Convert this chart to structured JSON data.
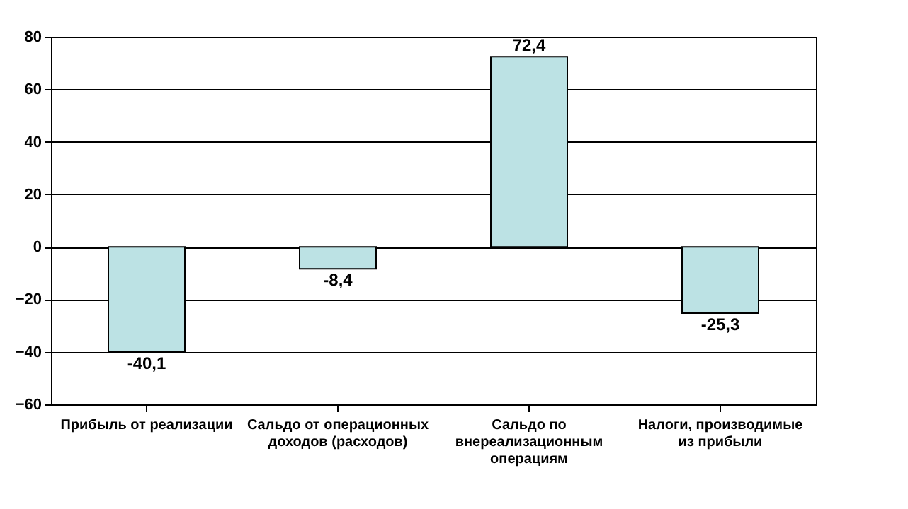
{
  "chart_data": {
    "type": "bar",
    "categories": [
      "Прибыль от реализации",
      "Сальдо от операционных доходов (расходов)",
      "Сальдо по внереализационным операциям",
      "Налоги, производимые из прибыли"
    ],
    "values": [
      -40.1,
      -8.4,
      72.4,
      -25.3
    ],
    "color": "#bce2e4",
    "ylim": [
      -60,
      80
    ],
    "yticks": [
      -60,
      -40,
      -20,
      0,
      20,
      40,
      60,
      80
    ],
    "grid": "y",
    "data_labels": true,
    "value_labels": [
      "-40,1",
      "-8,4",
      "72,4",
      "-25,3"
    ]
  }
}
